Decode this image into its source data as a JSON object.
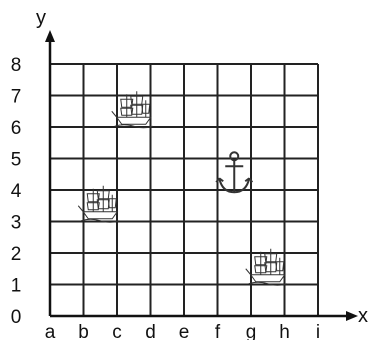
{
  "axes": {
    "x_name": "x",
    "y_name": "y",
    "x_labels": [
      "a",
      "b",
      "c",
      "d",
      "e",
      "f",
      "g",
      "h",
      "i"
    ],
    "y_labels": [
      "0",
      "1",
      "2",
      "3",
      "4",
      "5",
      "6",
      "7",
      "8"
    ]
  },
  "grid": {
    "columns": 8,
    "rows": 8
  },
  "markers": [
    {
      "icon": "ship-icon",
      "col": "c",
      "row": 6
    },
    {
      "icon": "ship-icon",
      "col": "b",
      "row": 3
    },
    {
      "icon": "anchor-icon",
      "col": "f",
      "row": 4
    },
    {
      "icon": "ship-icon",
      "col": "g",
      "row": 1
    }
  ]
}
